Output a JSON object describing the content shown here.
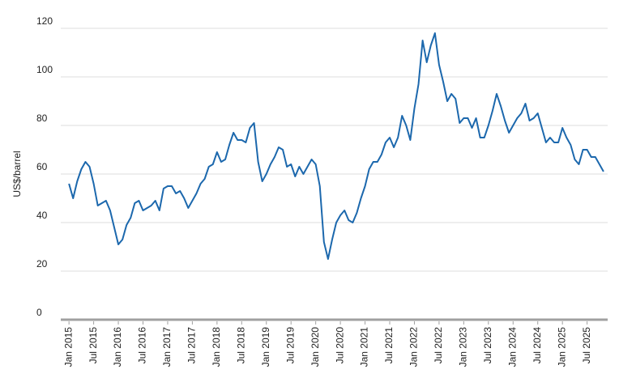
{
  "chart_data": {
    "type": "line",
    "ylabel": "US$/barrel",
    "ylim": [
      0,
      120
    ],
    "yticks": [
      0,
      20,
      40,
      60,
      80,
      100,
      120
    ],
    "grid": true,
    "xlim": [
      "2014-11",
      "2025-12"
    ],
    "xticks": [
      {
        "value": "2015-01",
        "label": "Jan 2015"
      },
      {
        "value": "2015-07",
        "label": "Jul 2015"
      },
      {
        "value": "2016-01",
        "label": "Jan 2016"
      },
      {
        "value": "2016-07",
        "label": "Jul 2016"
      },
      {
        "value": "2017-01",
        "label": "Jan 2017"
      },
      {
        "value": "2017-07",
        "label": "Jul 2017"
      },
      {
        "value": "2018-01",
        "label": "Jan 2018"
      },
      {
        "value": "2018-07",
        "label": "Jul 2018"
      },
      {
        "value": "2019-01",
        "label": "Jan 2019"
      },
      {
        "value": "2019-07",
        "label": "Jul 2019"
      },
      {
        "value": "2020-01",
        "label": "Jan 2020"
      },
      {
        "value": "2020-07",
        "label": "Jul 2020"
      },
      {
        "value": "2021-01",
        "label": "Jan 2021"
      },
      {
        "value": "2021-07",
        "label": "Jul 2021"
      },
      {
        "value": "2022-01",
        "label": "Jan 2022"
      },
      {
        "value": "2022-07",
        "label": "Jul 2022"
      },
      {
        "value": "2023-01",
        "label": "Jan 2023"
      },
      {
        "value": "2023-07",
        "label": "Jul 2023"
      },
      {
        "value": "2024-01",
        "label": "Jan 2024"
      },
      {
        "value": "2024-07",
        "label": "Jul 2024"
      },
      {
        "value": "2025-01",
        "label": "Jan 2025"
      },
      {
        "value": "2025-07",
        "label": "Jul 2025"
      }
    ],
    "x": [
      "2015-01",
      "2015-02",
      "2015-03",
      "2015-04",
      "2015-05",
      "2015-06",
      "2015-07",
      "2015-08",
      "2015-09",
      "2015-10",
      "2015-11",
      "2015-12",
      "2016-01",
      "2016-02",
      "2016-03",
      "2016-04",
      "2016-05",
      "2016-06",
      "2016-07",
      "2016-08",
      "2016-09",
      "2016-10",
      "2016-11",
      "2016-12",
      "2017-01",
      "2017-02",
      "2017-03",
      "2017-04",
      "2017-05",
      "2017-06",
      "2017-07",
      "2017-08",
      "2017-09",
      "2017-10",
      "2017-11",
      "2017-12",
      "2018-01",
      "2018-02",
      "2018-03",
      "2018-04",
      "2018-05",
      "2018-06",
      "2018-07",
      "2018-08",
      "2018-09",
      "2018-10",
      "2018-11",
      "2018-12",
      "2019-01",
      "2019-02",
      "2019-03",
      "2019-04",
      "2019-05",
      "2019-06",
      "2019-07",
      "2019-08",
      "2019-09",
      "2019-10",
      "2019-11",
      "2019-12",
      "2020-01",
      "2020-02",
      "2020-03",
      "2020-04",
      "2020-05",
      "2020-06",
      "2020-07",
      "2020-08",
      "2020-09",
      "2020-10",
      "2020-11",
      "2020-12",
      "2021-01",
      "2021-02",
      "2021-03",
      "2021-04",
      "2021-05",
      "2021-06",
      "2021-07",
      "2021-08",
      "2021-09",
      "2021-10",
      "2021-11",
      "2021-12",
      "2022-01",
      "2022-02",
      "2022-03",
      "2022-04",
      "2022-05",
      "2022-06",
      "2022-07",
      "2022-08",
      "2022-09",
      "2022-10",
      "2022-11",
      "2022-12",
      "2023-01",
      "2023-02",
      "2023-03",
      "2023-04",
      "2023-05",
      "2023-06",
      "2023-07",
      "2023-08",
      "2023-09",
      "2023-10",
      "2023-11",
      "2023-12",
      "2024-01",
      "2024-02",
      "2024-03",
      "2024-04",
      "2024-05",
      "2024-06",
      "2024-07",
      "2024-08",
      "2024-09",
      "2024-10",
      "2024-11",
      "2024-12",
      "2025-01",
      "2025-02",
      "2025-03",
      "2025-04",
      "2025-05",
      "2025-06",
      "2025-07",
      "2025-08",
      "2025-09",
      "2025-10",
      "2025-11"
    ],
    "series": [
      {
        "color": "#1c68ad",
        "values": [
          56,
          50,
          57,
          62,
          65,
          63,
          56,
          47,
          48,
          49,
          45,
          38,
          31,
          33,
          39,
          42,
          48,
          49,
          45,
          46,
          47,
          49,
          45,
          54,
          55,
          55,
          52,
          53,
          50,
          46,
          49,
          52,
          56,
          58,
          63,
          64,
          69,
          65,
          66,
          72,
          77,
          74,
          74,
          73,
          79,
          81,
          65,
          57,
          60,
          64,
          67,
          71,
          70,
          63,
          64,
          59,
          63,
          60,
          63,
          66,
          64,
          55,
          32,
          25,
          33,
          40,
          43,
          45,
          41,
          40,
          44,
          50,
          55,
          62,
          65,
          65,
          68,
          73,
          75,
          71,
          75,
          84,
          80,
          74,
          87,
          97,
          115,
          106,
          113,
          118,
          105,
          98,
          90,
          93,
          91,
          81,
          83,
          83,
          79,
          83,
          75,
          75,
          80,
          86,
          93,
          88,
          82,
          77,
          80,
          83,
          85,
          89,
          82,
          83,
          85,
          79,
          73,
          75,
          73,
          73,
          79,
          75,
          72,
          66,
          64,
          70,
          70,
          67,
          67,
          64,
          61
        ]
      }
    ]
  }
}
